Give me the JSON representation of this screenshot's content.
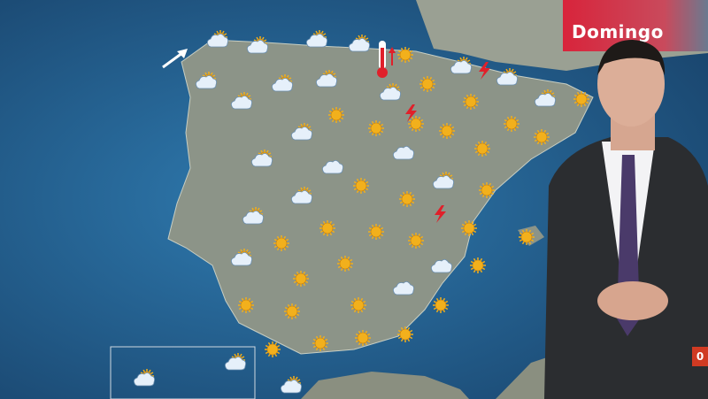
{
  "broadcast": {
    "day_label": "Domingo",
    "badge_glyph": "0"
  },
  "colors": {
    "ocean": "#1f5f8c",
    "land": "#8c9488",
    "day_banner": "#d8243b",
    "sun": "#f2b01c",
    "cloud": "#e6f0fa",
    "storm": "#e0202a"
  },
  "legend_icons": [
    "sun-icon",
    "sun-cloud-icon",
    "cloud-icon",
    "thunderstorm-icon",
    "wind-arrow-icon",
    "thermometer-rising-icon"
  ]
}
